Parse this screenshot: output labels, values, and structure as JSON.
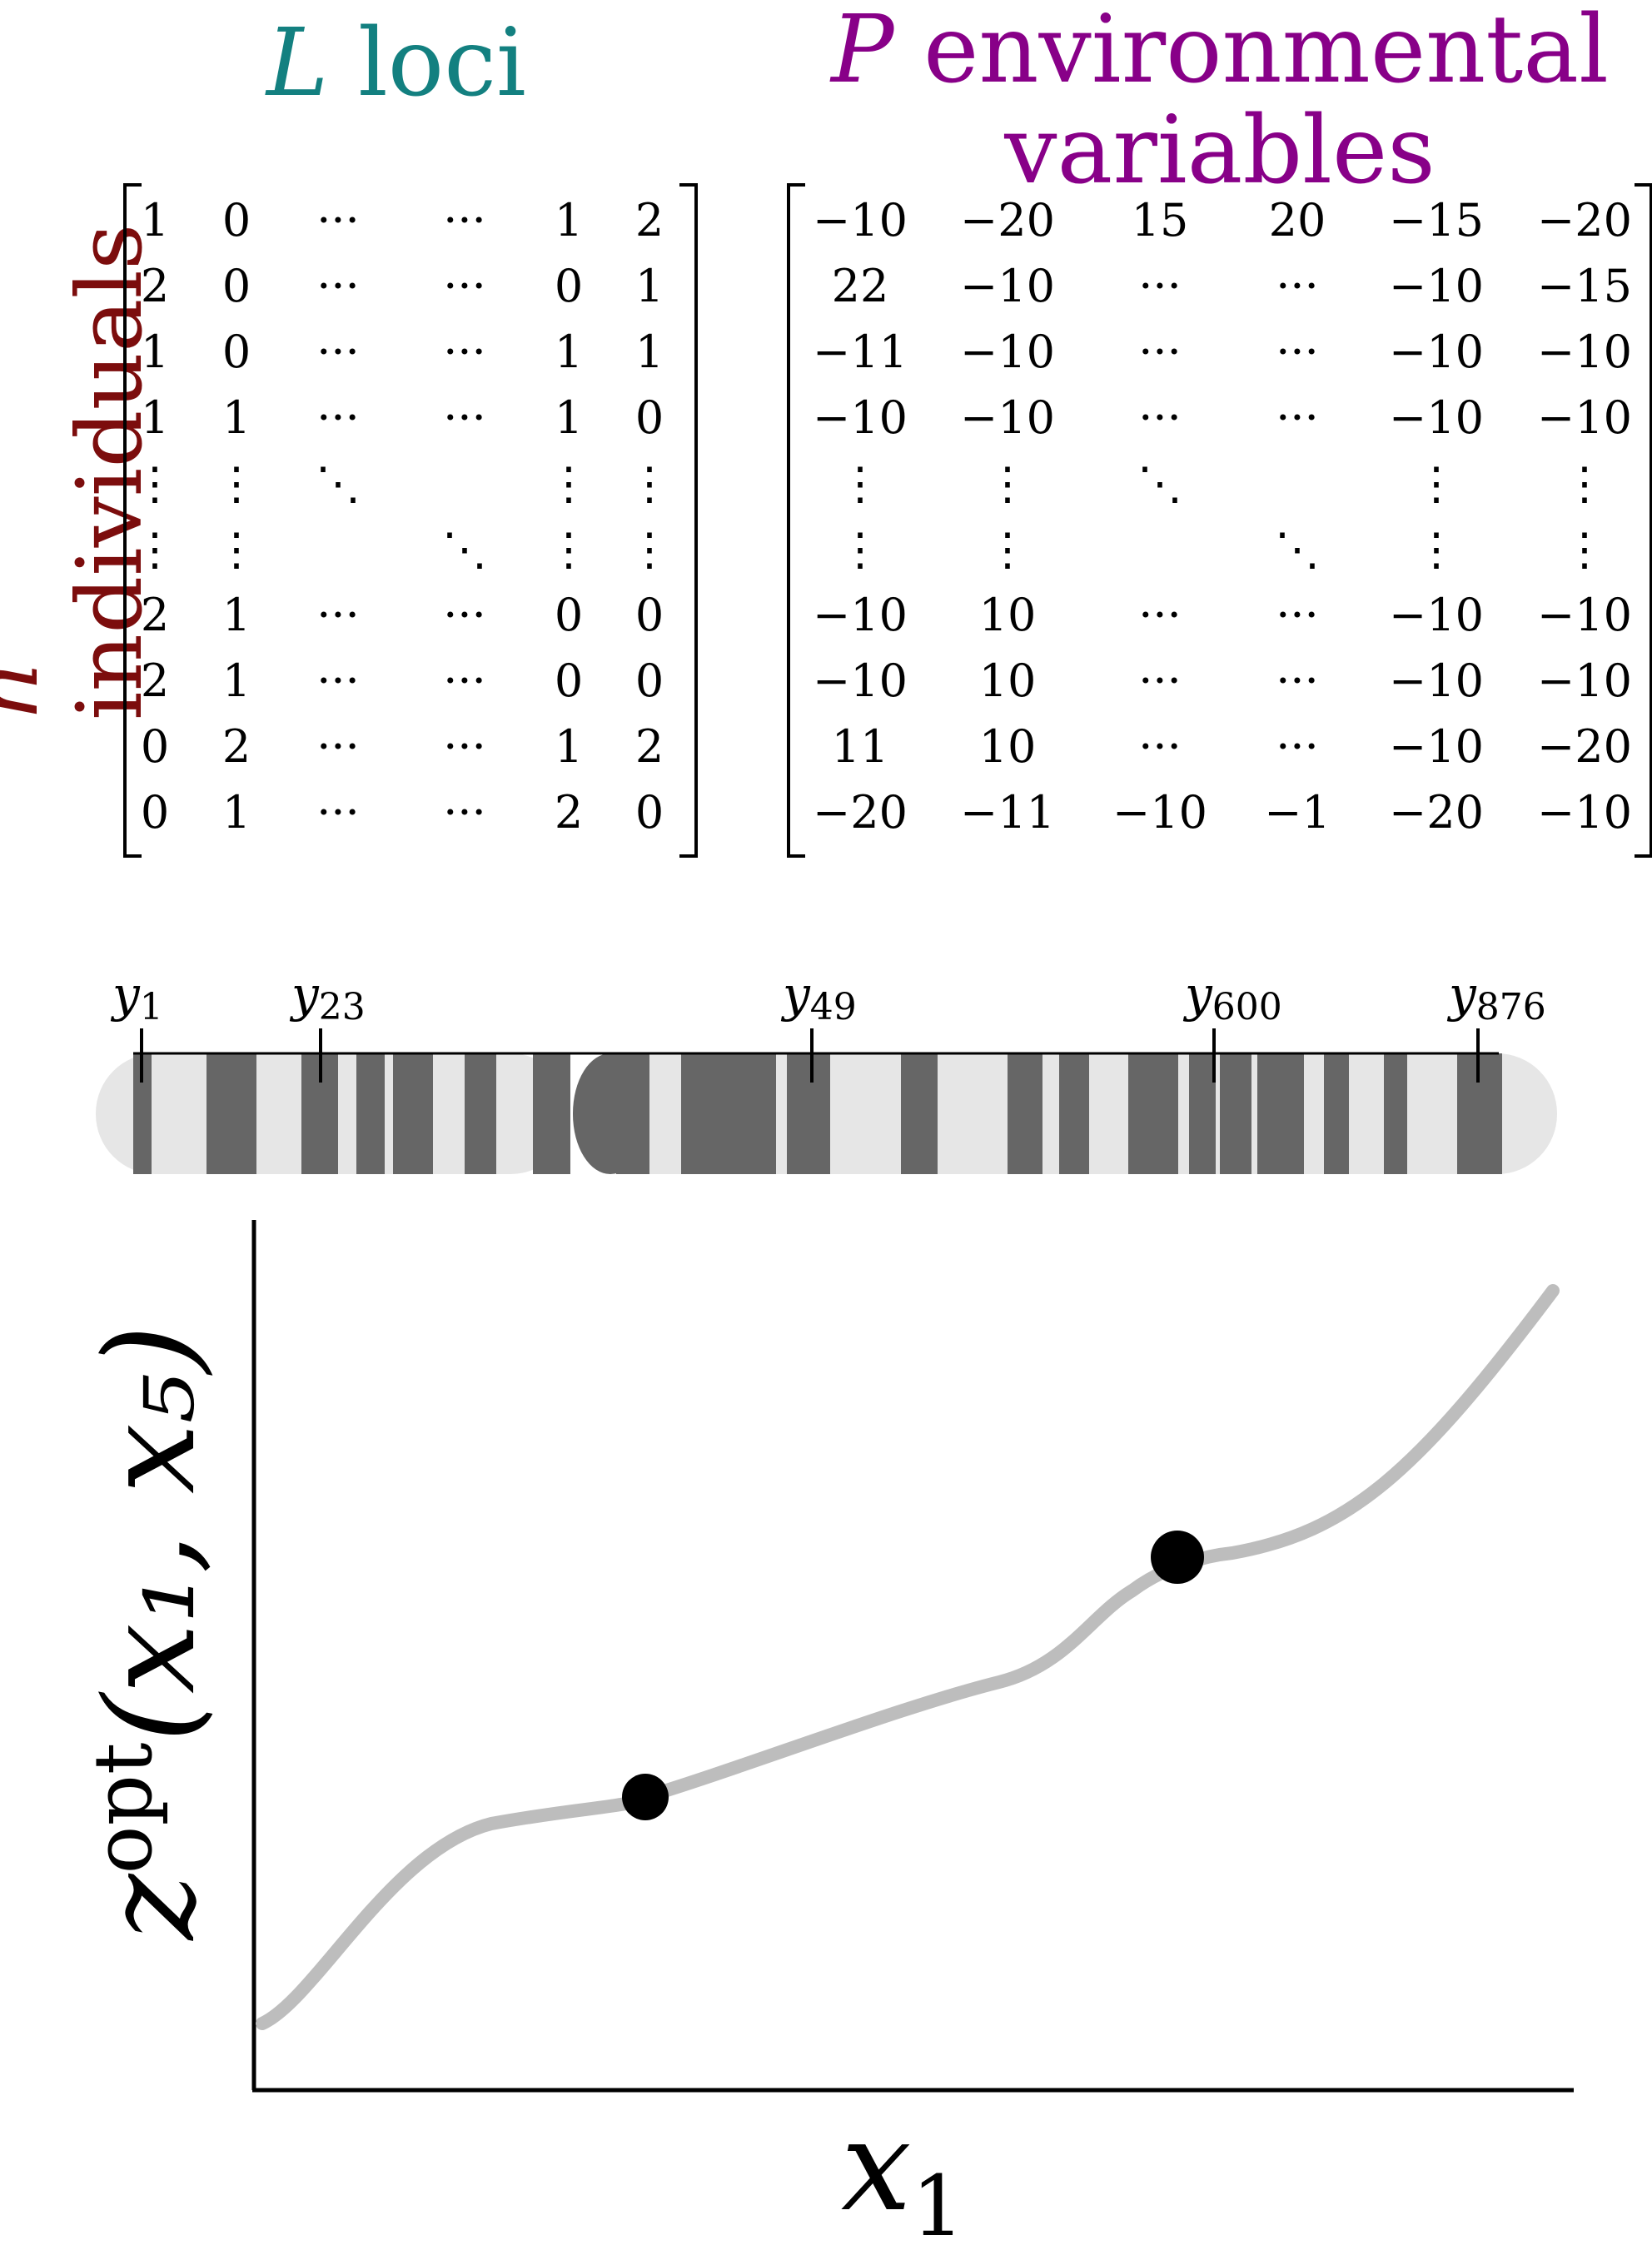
{
  "titles": {
    "loci_symbol": "L",
    "loci_text": "loci",
    "env_symbol": "P",
    "env_line1": "environmental",
    "env_line2": "variables",
    "ind_symbol": "n",
    "ind_text": "individuals"
  },
  "genotype_matrix": [
    [
      "1",
      "0",
      "···",
      "···",
      "1",
      "2"
    ],
    [
      "2",
      "0",
      "···",
      "···",
      "0",
      "1"
    ],
    [
      "1",
      "0",
      "···",
      "···",
      "1",
      "1"
    ],
    [
      "1",
      "1",
      "···",
      "···",
      "1",
      "0"
    ],
    [
      "⋮",
      "⋮",
      "⋱",
      "",
      "⋮",
      "⋮"
    ],
    [
      "⋮",
      "⋮",
      "",
      "⋱",
      "⋮",
      "⋮"
    ],
    [
      "2",
      "1",
      "···",
      "···",
      "0",
      "0"
    ],
    [
      "2",
      "1",
      "···",
      "···",
      "0",
      "0"
    ],
    [
      "0",
      "2",
      "···",
      "···",
      "1",
      "2"
    ],
    [
      "0",
      "1",
      "···",
      "···",
      "2",
      "0"
    ]
  ],
  "environment_matrix": [
    [
      "−10",
      "−20",
      "15",
      "20",
      "−15",
      "−20"
    ],
    [
      "22",
      "−10",
      "···",
      "···",
      "−10",
      "−15"
    ],
    [
      "−11",
      "−10",
      "···",
      "···",
      "−10",
      "−10"
    ],
    [
      "−10",
      "−10",
      "···",
      "···",
      "−10",
      "−10"
    ],
    [
      "⋮",
      "⋮",
      "⋱",
      "",
      "⋮",
      "⋮"
    ],
    [
      "⋮",
      "⋮",
      "",
      "⋱",
      "⋮",
      "⋮"
    ],
    [
      "−10",
      "10",
      "···",
      "···",
      "−10",
      "−10"
    ],
    [
      "−10",
      "10",
      "···",
      "···",
      "−10",
      "−10"
    ],
    [
      "11",
      "10",
      "···",
      "···",
      "−10",
      "−20"
    ],
    [
      "−20",
      "−11",
      "−10",
      "−1",
      "−20",
      "−10"
    ]
  ],
  "markers": [
    {
      "base": "y",
      "sub": "1"
    },
    {
      "base": "y",
      "sub": "23"
    },
    {
      "base": "y",
      "sub": "49"
    },
    {
      "base": "y",
      "sub": "600"
    },
    {
      "base": "y",
      "sub": "876"
    }
  ],
  "colors": {
    "loci": "#138080",
    "environment": "#880088",
    "individuals": "#7c0d0d",
    "band_dark": "#666666",
    "band_light": "#e6e6e6",
    "curve": "#bdbdbd"
  },
  "plot": {
    "y_label_base": "z",
    "y_label_sup": "opt",
    "y_label_args": "(x₁, x₅)",
    "x_label_base": "x",
    "x_label_sub": "1"
  }
}
